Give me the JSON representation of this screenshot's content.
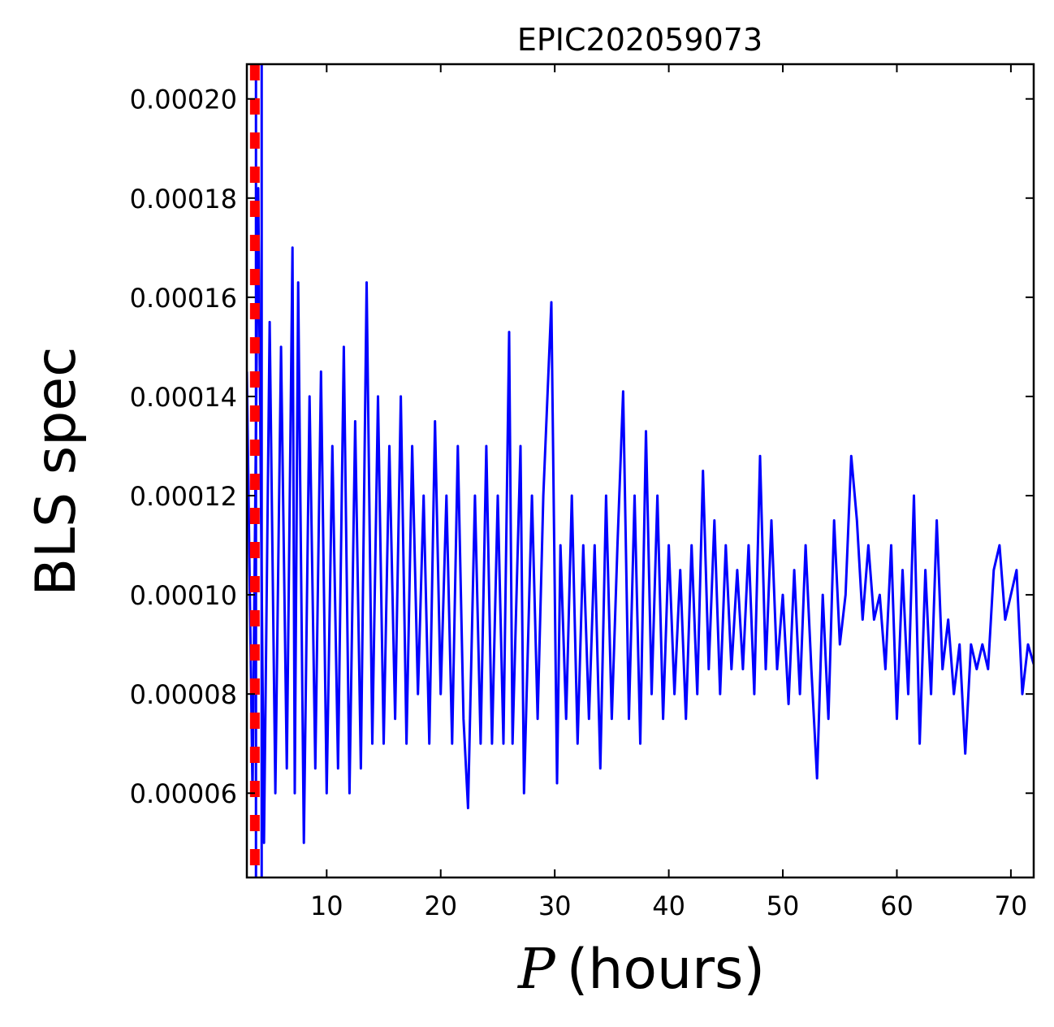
{
  "chart_data": {
    "type": "line",
    "title": "EPIC202059073",
    "xlabel_var": "P",
    "xlabel_unit": "(hours)",
    "ylabel": "BLS spec",
    "xlim": [
      3.0,
      72.0
    ],
    "ylim": [
      4.3e-05,
      0.000207
    ],
    "x_ticks": [
      10,
      20,
      30,
      40,
      50,
      60,
      70
    ],
    "x_tick_labels": [
      "10",
      "20",
      "30",
      "40",
      "50",
      "60",
      "70"
    ],
    "y_ticks": [
      6e-05,
      8e-05,
      0.0001,
      0.00012,
      0.00014,
      0.00016,
      0.00018,
      0.0002
    ],
    "y_tick_labels": [
      "0.00006",
      "0.00008",
      "0.00010",
      "0.00012",
      "0.00014",
      "0.00016",
      "0.00018",
      "0.00020"
    ],
    "vertical_lines": [
      {
        "x": 3.8,
        "color": "#0000ff",
        "style": "solid"
      },
      {
        "x": 4.3,
        "color": "#0000ff",
        "style": "solid"
      },
      {
        "x": 3.7,
        "color": "#ff0000",
        "style": "dashed"
      }
    ],
    "series": [
      {
        "color": "#0000ff",
        "x": [
          3.0,
          3.5,
          4.0,
          4.5,
          5.0,
          5.5,
          6.0,
          6.5,
          7.0,
          7.2,
          7.5,
          8.0,
          8.5,
          9.0,
          9.5,
          10.0,
          10.5,
          11.0,
          11.5,
          12.0,
          12.5,
          13.0,
          13.5,
          14.0,
          14.5,
          15.0,
          15.5,
          16.0,
          16.5,
          17.0,
          17.5,
          18.0,
          18.5,
          19.0,
          19.5,
          20.0,
          20.5,
          21.0,
          21.5,
          22.0,
          22.4,
          23.0,
          23.5,
          24.0,
          24.5,
          25.0,
          25.5,
          26.0,
          26.3,
          27.0,
          27.3,
          28.0,
          28.5,
          29.0,
          29.7,
          30.2,
          30.5,
          31.0,
          31.5,
          32.0,
          32.5,
          33.0,
          33.5,
          34.0,
          34.5,
          35.0,
          35.5,
          36.0,
          36.5,
          37.0,
          37.5,
          38.0,
          38.5,
          39.0,
          39.5,
          40.0,
          40.5,
          41.0,
          41.5,
          42.0,
          42.5,
          43.0,
          43.5,
          44.0,
          44.5,
          45.0,
          45.5,
          46.0,
          46.5,
          47.0,
          47.5,
          48.0,
          48.5,
          49.0,
          49.5,
          50.0,
          50.5,
          51.0,
          51.5,
          52.0,
          52.5,
          53.0,
          53.5,
          54.0,
          54.5,
          55.0,
          55.5,
          56.0,
          56.5,
          57.0,
          57.5,
          58.0,
          58.5,
          59.0,
          59.5,
          60.0,
          60.5,
          61.0,
          61.5,
          62.0,
          62.5,
          63.0,
          63.5,
          64.0,
          64.5,
          65.0,
          65.5,
          66.0,
          66.5,
          67.0,
          67.5,
          68.0,
          68.5,
          69.0,
          69.5,
          70.0,
          70.5,
          71.0,
          71.5,
          72.0
        ],
        "values": [
          0.000145,
          6e-05,
          0.000182,
          5e-05,
          0.000155,
          6e-05,
          0.00015,
          6.5e-05,
          0.00017,
          6e-05,
          0.000163,
          5e-05,
          0.00014,
          6.5e-05,
          0.000145,
          6e-05,
          0.00013,
          6.5e-05,
          0.00015,
          6e-05,
          0.000135,
          6.5e-05,
          0.000163,
          7e-05,
          0.00014,
          7e-05,
          0.00013,
          7.5e-05,
          0.00014,
          7e-05,
          0.00013,
          8e-05,
          0.00012,
          7e-05,
          0.000135,
          8e-05,
          0.00012,
          7e-05,
          0.00013,
          7.5e-05,
          5.7e-05,
          0.00012,
          7e-05,
          0.00013,
          7e-05,
          0.00012,
          7e-05,
          0.000153,
          7e-05,
          0.00013,
          6e-05,
          0.00012,
          7.5e-05,
          0.00012,
          0.000159,
          6.2e-05,
          0.00011,
          7.5e-05,
          0.00012,
          7e-05,
          0.00011,
          7.5e-05,
          0.00011,
          6.5e-05,
          0.00012,
          7.5e-05,
          0.00011,
          0.000141,
          7.5e-05,
          0.00012,
          7e-05,
          0.000133,
          8e-05,
          0.00012,
          7.5e-05,
          0.00011,
          8e-05,
          0.000105,
          7.5e-05,
          0.00011,
          8e-05,
          0.000125,
          8.5e-05,
          0.000115,
          8e-05,
          0.00011,
          8.5e-05,
          0.000105,
          8.5e-05,
          0.00011,
          8e-05,
          0.000128,
          8.5e-05,
          0.000115,
          8.5e-05,
          0.0001,
          7.8e-05,
          0.000105,
          8e-05,
          0.00011,
          8.5e-05,
          6.3e-05,
          0.0001,
          7.5e-05,
          0.000115,
          9e-05,
          0.0001,
          0.000128,
          0.000115,
          9.5e-05,
          0.00011,
          9.5e-05,
          0.0001,
          8.5e-05,
          0.00011,
          7.5e-05,
          0.000105,
          8e-05,
          0.00012,
          7e-05,
          0.000105,
          8e-05,
          0.000115,
          8.5e-05,
          9.5e-05,
          8e-05,
          9e-05,
          6.8e-05,
          9e-05,
          8.5e-05,
          9e-05,
          8.5e-05,
          0.000105,
          0.00011,
          9.5e-05,
          0.0001,
          0.000105,
          8e-05,
          9e-05,
          8.6e-05
        ]
      }
    ]
  }
}
